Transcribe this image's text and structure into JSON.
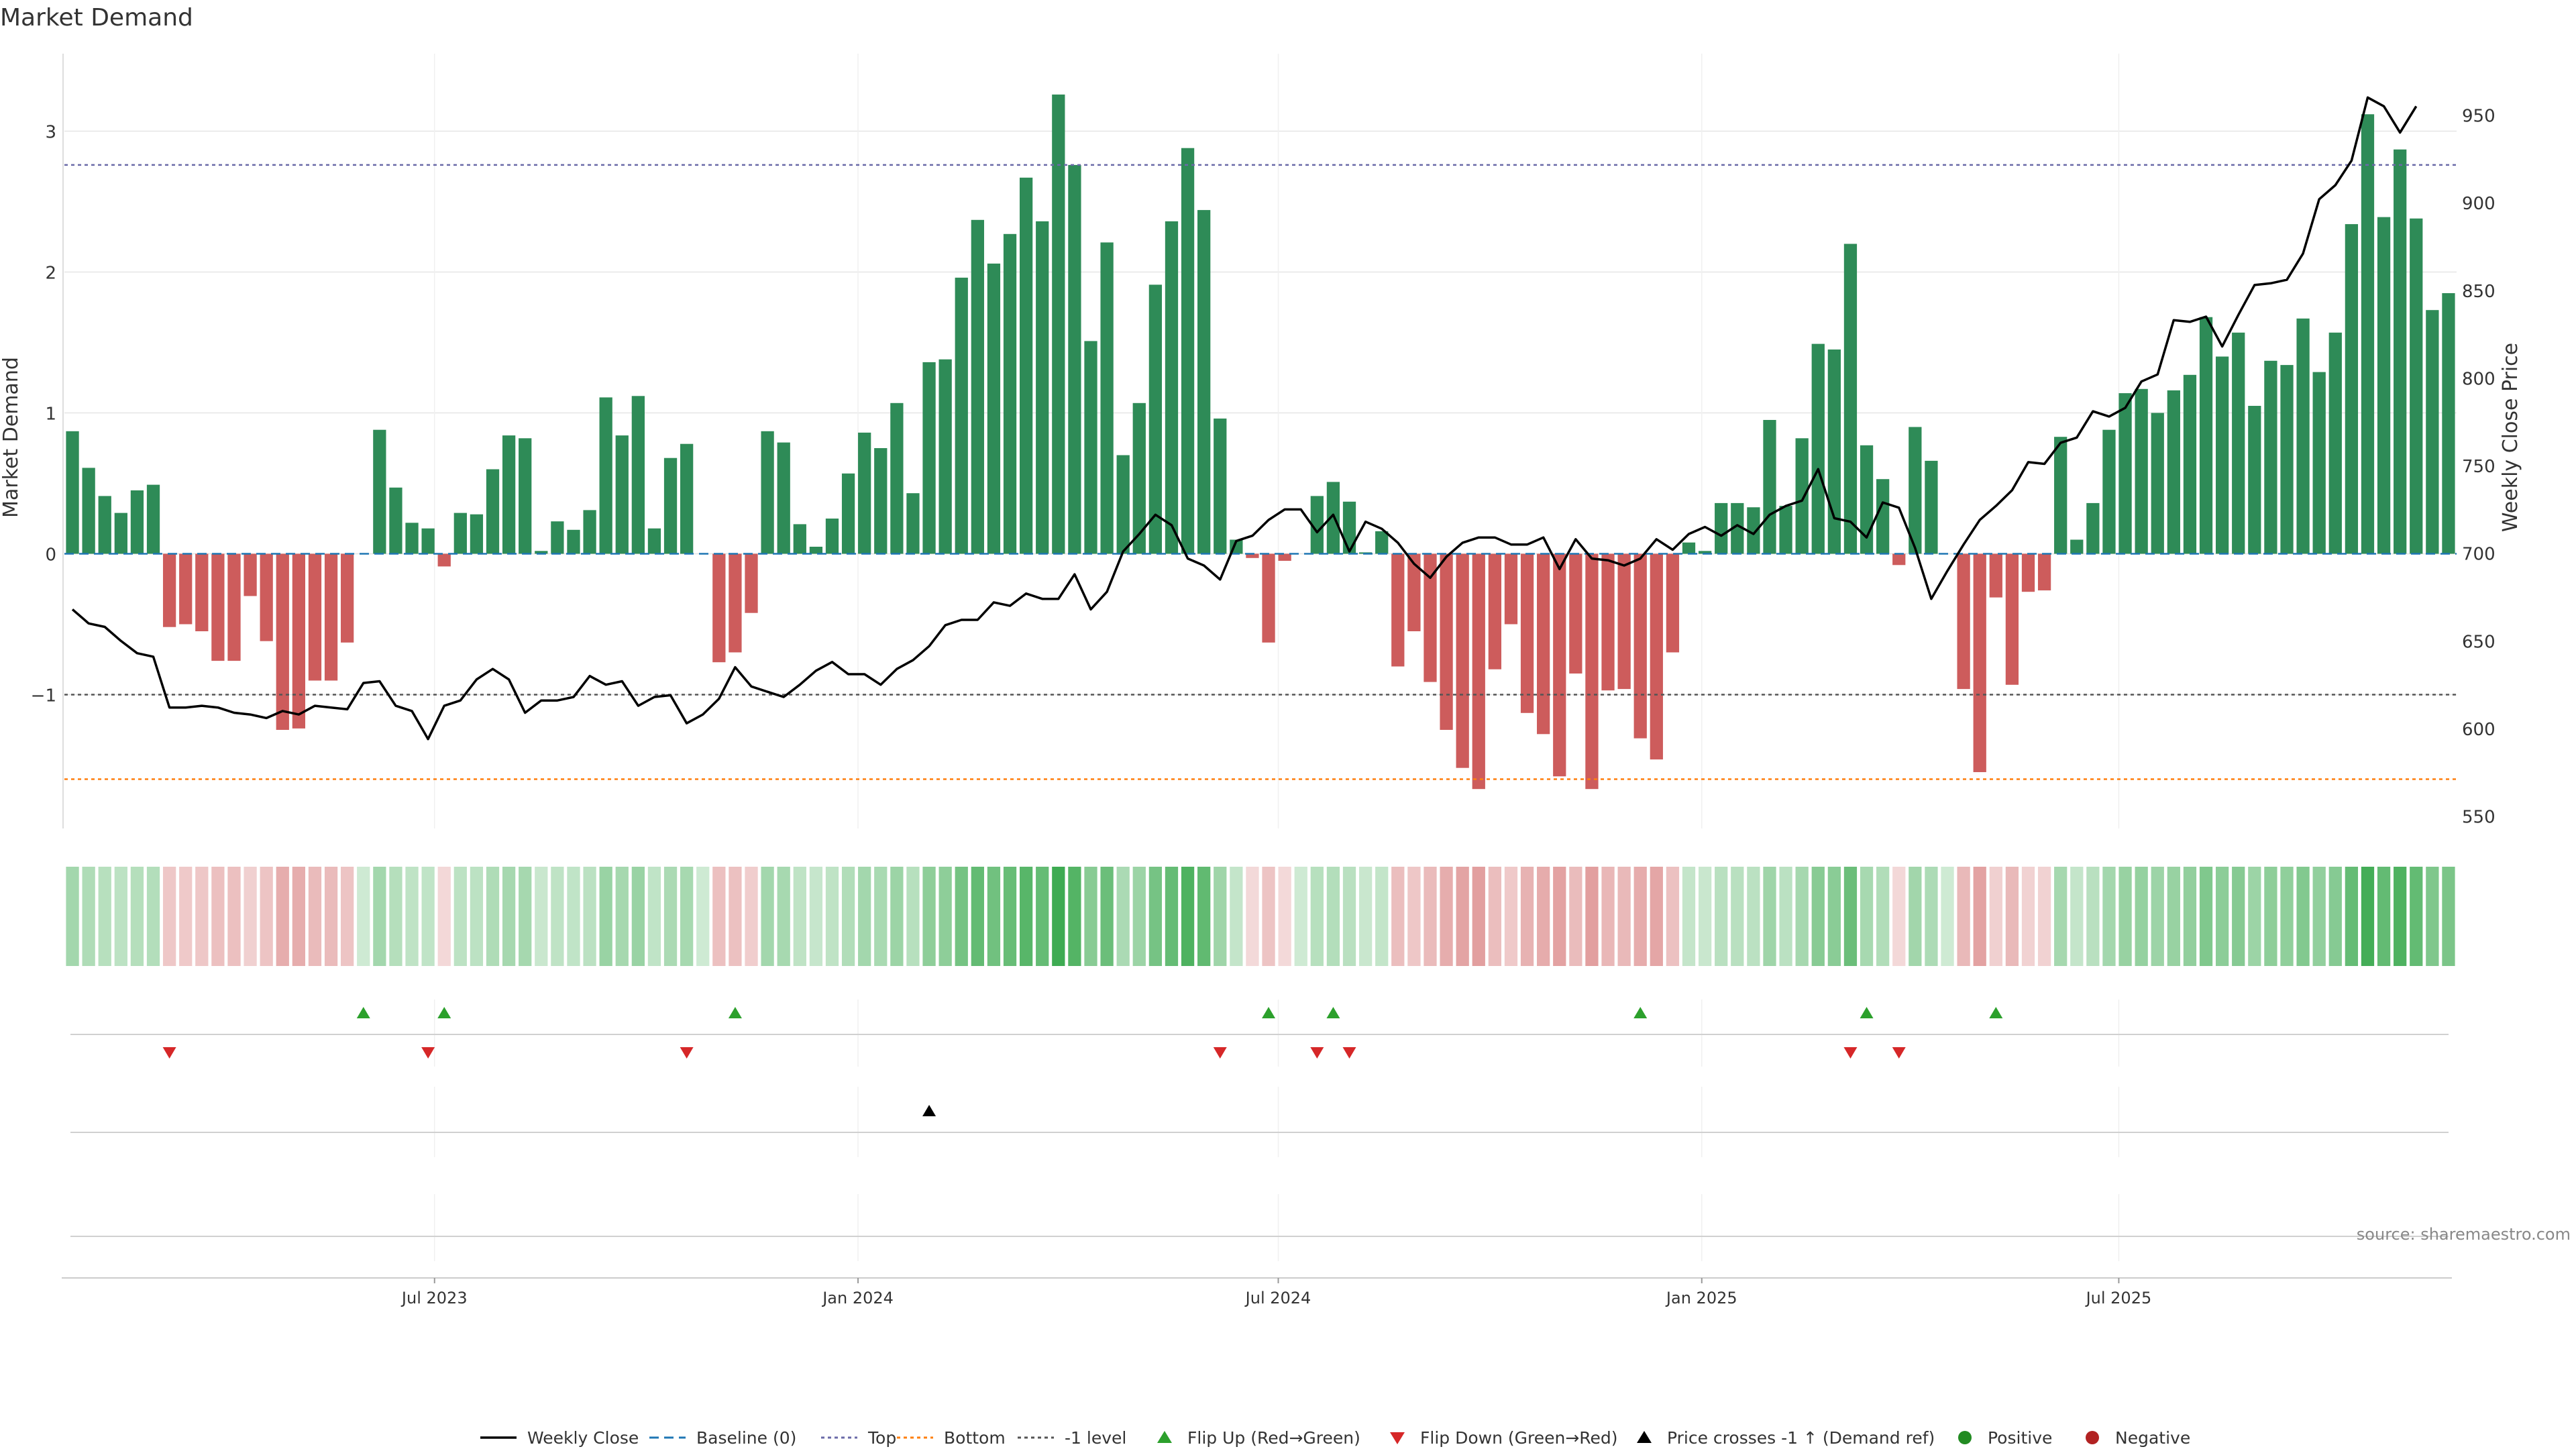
{
  "title": "Market Demand",
  "source": "source: sharemaestro.com",
  "colors": {
    "pos": "#2e8b57",
    "neg": "#cd5c5c",
    "price": "#000000",
    "baseline": "#1f77b4",
    "top": "#6a6aa8",
    "bottom": "#ff7f0e",
    "minus1": "#555555",
    "flipUp": "#2ca02c",
    "flipDown": "#d62728",
    "grid": "#e6e6e6",
    "dotPos": "#228b22",
    "dotNeg": "#b22222"
  },
  "chart_data": {
    "type": "bar",
    "title": "Market Demand",
    "xlabel": "",
    "ylabel": "Market Demand",
    "y2label": "Weekly Close Price",
    "ylim": [
      -1.95,
      3.55
    ],
    "y2lim": [
      543,
      985
    ],
    "yticks": [
      3,
      2,
      1,
      0,
      -1
    ],
    "y2ticks": [
      950,
      900,
      850,
      800,
      750,
      700,
      650,
      600,
      550
    ],
    "yticklabels": [
      "3",
      "2",
      "1",
      "0",
      "−1"
    ],
    "xticks": [
      {
        "label": "Jul 2023",
        "week": 22.4
      },
      {
        "label": "Jan 2024",
        "week": 48.6
      },
      {
        "label": "Jul 2024",
        "week": 74.6
      },
      {
        "label": "Jan 2025",
        "week": 100.8
      },
      {
        "label": "Jul 2025",
        "week": 126.6
      }
    ],
    "levels": {
      "top": 2.76,
      "bottom": -1.6,
      "minus1": -1.0,
      "baseline": 0
    },
    "demand": [
      0.87,
      0.61,
      0.41,
      0.29,
      0.45,
      0.49,
      -0.52,
      -0.5,
      -0.55,
      -0.76,
      -0.76,
      -0.3,
      -0.62,
      -1.25,
      -1.24,
      -0.9,
      -0.9,
      -0.63,
      0,
      0.88,
      0.47,
      0.22,
      0.18,
      -0.09,
      0.29,
      0.28,
      0.6,
      0.84,
      0.82,
      0.02,
      0.23,
      0.17,
      0.31,
      1.11,
      0.84,
      1.12,
      0.18,
      0.68,
      0.78,
      0,
      -0.77,
      -0.7,
      -0.42,
      0.87,
      0.79,
      0.21,
      0.05,
      0.25,
      0.57,
      0.86,
      0.75,
      1.07,
      0.43,
      1.36,
      1.38,
      1.96,
      2.37,
      2.06,
      2.27,
      2.67,
      2.36,
      3.26,
      2.76,
      1.51,
      2.21,
      0.7,
      1.07,
      1.91,
      2.36,
      2.88,
      2.44,
      0.96,
      0.1,
      -0.03,
      -0.63,
      -0.05,
      0,
      0.41,
      0.51,
      0.37,
      0.01,
      0.16,
      -0.8,
      -0.55,
      -0.91,
      -1.25,
      -1.52,
      -1.67,
      -0.82,
      -0.5,
      -1.13,
      -1.28,
      -1.58,
      -0.85,
      -1.67,
      -0.97,
      -0.96,
      -1.31,
      -1.46,
      -0.7,
      0.08,
      0.02,
      0.36,
      0.36,
      0.33,
      0.95,
      0.34,
      0.82,
      1.49,
      1.45,
      2.2,
      0.77,
      0.53,
      -0.08,
      0.9,
      0.66,
      0,
      -0.96,
      -1.55,
      -0.31,
      -0.93,
      -0.27,
      -0.26,
      0.83,
      0.1,
      0.36,
      0.88,
      1.14,
      1.17,
      1.0,
      1.16,
      1.27,
      1.68,
      1.4,
      1.57,
      1.05,
      1.37,
      1.34,
      1.67,
      1.29,
      1.57,
      2.34,
      3.12,
      2.39,
      2.87,
      2.38,
      1.73,
      1.85
    ],
    "close": [
      [
        0,
        668
      ],
      [
        1,
        660
      ],
      [
        2,
        658
      ],
      [
        3,
        650
      ],
      [
        4,
        643
      ],
      [
        5,
        641
      ],
      [
        6,
        612
      ],
      [
        7,
        612
      ],
      [
        8,
        613
      ],
      [
        9,
        612
      ],
      [
        10,
        609
      ],
      [
        11,
        608
      ],
      [
        12,
        606
      ],
      [
        13,
        610
      ],
      [
        14,
        608
      ],
      [
        15,
        613
      ],
      [
        16,
        612
      ],
      [
        17,
        611
      ],
      [
        18,
        626
      ],
      [
        19,
        627
      ],
      [
        20,
        613
      ],
      [
        21,
        610
      ],
      [
        22,
        594
      ],
      [
        23,
        613
      ],
      [
        24,
        616
      ],
      [
        25,
        628
      ],
      [
        26,
        634
      ],
      [
        27,
        628
      ],
      [
        28,
        609
      ],
      [
        29,
        616
      ],
      [
        30,
        616
      ],
      [
        31,
        618
      ],
      [
        32,
        630
      ],
      [
        33,
        625
      ],
      [
        34,
        627
      ],
      [
        35,
        613
      ],
      [
        36,
        618
      ],
      [
        37,
        619
      ],
      [
        38,
        603
      ],
      [
        39,
        608
      ],
      [
        40,
        617
      ],
      [
        41,
        635
      ],
      [
        42,
        624
      ],
      [
        43,
        621
      ],
      [
        44,
        618
      ],
      [
        45,
        625
      ],
      [
        46,
        633
      ],
      [
        47,
        638
      ],
      [
        48,
        631
      ],
      [
        49,
        631
      ],
      [
        50,
        625
      ],
      [
        51,
        634
      ],
      [
        52,
        639
      ],
      [
        53,
        647
      ],
      [
        54,
        659
      ],
      [
        55,
        662
      ],
      [
        56,
        662
      ],
      [
        57,
        672
      ],
      [
        58,
        670
      ],
      [
        59,
        677
      ],
      [
        60,
        674
      ],
      [
        61,
        674
      ],
      [
        62,
        688
      ],
      [
        63,
        668
      ],
      [
        64,
        678
      ],
      [
        65,
        701
      ],
      [
        66,
        711
      ],
      [
        67,
        722
      ],
      [
        68,
        716
      ],
      [
        69,
        697
      ],
      [
        70,
        693
      ],
      [
        71,
        685
      ],
      [
        72,
        707
      ],
      [
        73,
        710
      ],
      [
        74,
        719
      ],
      [
        75,
        725
      ],
      [
        76,
        725
      ],
      [
        77,
        712
      ],
      [
        78,
        722
      ],
      [
        79,
        701
      ],
      [
        80,
        718
      ],
      [
        81,
        714
      ],
      [
        82,
        706
      ],
      [
        83,
        694
      ],
      [
        84,
        686
      ],
      [
        85,
        698
      ],
      [
        86,
        706
      ],
      [
        87,
        709
      ],
      [
        88,
        709
      ],
      [
        89,
        705
      ],
      [
        90,
        705
      ],
      [
        91,
        709
      ],
      [
        92,
        691
      ],
      [
        93,
        708
      ],
      [
        94,
        697
      ],
      [
        95,
        696
      ],
      [
        96,
        693
      ],
      [
        97,
        697
      ],
      [
        98,
        708
      ],
      [
        99,
        702
      ],
      [
        100,
        711
      ],
      [
        101,
        715
      ],
      [
        102,
        710
      ],
      [
        103,
        716
      ],
      [
        104,
        711
      ],
      [
        105,
        722
      ],
      [
        106,
        727
      ],
      [
        107,
        730
      ],
      [
        108,
        748
      ],
      [
        109,
        720
      ],
      [
        110,
        718
      ],
      [
        111,
        709
      ],
      [
        112,
        729
      ],
      [
        113,
        726
      ],
      [
        114,
        703
      ],
      [
        115,
        674
      ],
      [
        116,
        690
      ],
      [
        117,
        705
      ],
      [
        118,
        719
      ],
      [
        119,
        727
      ],
      [
        120,
        736
      ],
      [
        121,
        752
      ],
      [
        122,
        751
      ],
      [
        123,
        763
      ],
      [
        124,
        766
      ],
      [
        125,
        781
      ],
      [
        126,
        778
      ],
      [
        127,
        783
      ],
      [
        128,
        798
      ],
      [
        129,
        802
      ],
      [
        130,
        833
      ],
      [
        131,
        832
      ],
      [
        132,
        835
      ],
      [
        133,
        818
      ],
      [
        134,
        836
      ],
      [
        135,
        853
      ],
      [
        136,
        854
      ],
      [
        137,
        856
      ],
      [
        138,
        871
      ],
      [
        139,
        902
      ],
      [
        140,
        910
      ],
      [
        141,
        924
      ],
      [
        142,
        960
      ],
      [
        143,
        955
      ],
      [
        144,
        940
      ],
      [
        145,
        955
      ]
    ],
    "flip_up_weeks": [
      18,
      23,
      41,
      74,
      78,
      97,
      111,
      119
    ],
    "flip_down_weeks": [
      6,
      22,
      38,
      71,
      77,
      79,
      110,
      113
    ],
    "price_cross_weeks": [
      53
    ],
    "legend": [
      "Weekly Close",
      "Baseline (0)",
      "Top",
      "Bottom",
      "-1 level",
      "Flip Up (Red→Green)",
      "Flip Down (Green→Red)",
      "Price crosses -1 ↑ (Demand ref)",
      "Positive",
      "Negative"
    ]
  }
}
